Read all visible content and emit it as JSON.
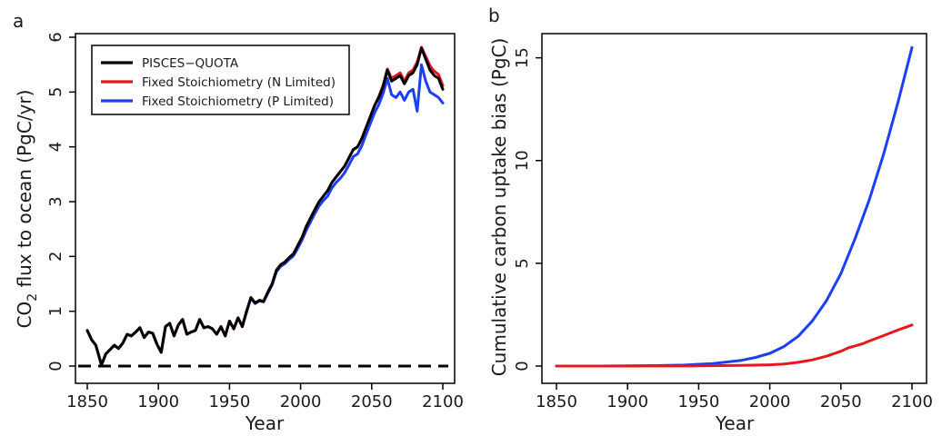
{
  "figure": {
    "panel_a_letter": "a",
    "panel_b_letter": "b"
  },
  "chart_data": [
    {
      "id": "panel-a",
      "type": "line",
      "title": "",
      "xlabel": "Year",
      "ylabel": "CO2 flux to ocean (PgC/yr)",
      "ylabel_parts": {
        "pre": "CO",
        "sub": "2",
        "post": " flux to ocean (PgC/yr)"
      },
      "xlim": [
        1850,
        2100
      ],
      "ylim": [
        0,
        6
      ],
      "xticks": [
        1850,
        1900,
        1950,
        2000,
        2050,
        2100
      ],
      "yticks": [
        0,
        1,
        2,
        3,
        4,
        5,
        6
      ],
      "grid": false,
      "legend_position": "top-left",
      "reference_line": {
        "y": 0,
        "style": "dashed"
      },
      "series": [
        {
          "name": "PISCES−QUOTA",
          "color": "#000000",
          "x": [
            1850,
            1853,
            1856,
            1858,
            1860,
            1863,
            1866,
            1869,
            1872,
            1875,
            1878,
            1881,
            1884,
            1887,
            1890,
            1893,
            1896,
            1899,
            1902,
            1905,
            1908,
            1911,
            1914,
            1917,
            1920,
            1923,
            1926,
            1929,
            1932,
            1935,
            1938,
            1941,
            1944,
            1947,
            1950,
            1953,
            1956,
            1959,
            1962,
            1965,
            1968,
            1971,
            1974,
            1977,
            1980,
            1983,
            1986,
            1989,
            1992,
            1995,
            1998,
            2001,
            2004,
            2007,
            2010,
            2013,
            2016,
            2019,
            2022,
            2025,
            2028,
            2031,
            2034,
            2037,
            2040,
            2043,
            2046,
            2049,
            2052,
            2055,
            2058,
            2061,
            2064,
            2067,
            2070,
            2073,
            2076,
            2079,
            2082,
            2085,
            2088,
            2091,
            2094,
            2097,
            2100
          ],
          "y": [
            0.65,
            0.48,
            0.38,
            0.2,
            0.02,
            0.22,
            0.3,
            0.38,
            0.32,
            0.42,
            0.58,
            0.55,
            0.62,
            0.7,
            0.52,
            0.62,
            0.6,
            0.4,
            0.25,
            0.72,
            0.78,
            0.55,
            0.75,
            0.85,
            0.58,
            0.62,
            0.65,
            0.85,
            0.7,
            0.72,
            0.68,
            0.58,
            0.72,
            0.55,
            0.82,
            0.68,
            0.88,
            0.72,
            1.0,
            1.25,
            1.15,
            1.2,
            1.18,
            1.35,
            1.5,
            1.75,
            1.85,
            1.9,
            1.98,
            2.05,
            2.2,
            2.35,
            2.55,
            2.7,
            2.85,
            3.0,
            3.1,
            3.2,
            3.35,
            3.45,
            3.55,
            3.65,
            3.8,
            3.95,
            4.0,
            4.15,
            4.35,
            4.55,
            4.75,
            4.9,
            5.1,
            5.4,
            5.2,
            5.25,
            5.3,
            5.15,
            5.3,
            5.35,
            5.5,
            5.8,
            5.6,
            5.4,
            5.3,
            5.25,
            5.05
          ]
        },
        {
          "name": "Fixed Stoichiometry (N Limited)",
          "color": "#e8171c",
          "x": [
            1850,
            1853,
            1856,
            1858,
            1860,
            1863,
            1866,
            1869,
            1872,
            1875,
            1878,
            1881,
            1884,
            1887,
            1890,
            1893,
            1896,
            1899,
            1902,
            1905,
            1908,
            1911,
            1914,
            1917,
            1920,
            1923,
            1926,
            1929,
            1932,
            1935,
            1938,
            1941,
            1944,
            1947,
            1950,
            1953,
            1956,
            1959,
            1962,
            1965,
            1968,
            1971,
            1974,
            1977,
            1980,
            1983,
            1986,
            1989,
            1992,
            1995,
            1998,
            2001,
            2004,
            2007,
            2010,
            2013,
            2016,
            2019,
            2022,
            2025,
            2028,
            2031,
            2034,
            2037,
            2040,
            2043,
            2046,
            2049,
            2052,
            2055,
            2058,
            2061,
            2064,
            2067,
            2070,
            2073,
            2076,
            2079,
            2082,
            2085,
            2088,
            2091,
            2094,
            2097,
            2100
          ],
          "y": [
            0.65,
            0.48,
            0.38,
            0.2,
            0.02,
            0.22,
            0.3,
            0.38,
            0.32,
            0.42,
            0.58,
            0.55,
            0.62,
            0.7,
            0.52,
            0.62,
            0.6,
            0.4,
            0.25,
            0.72,
            0.78,
            0.55,
            0.75,
            0.85,
            0.58,
            0.62,
            0.65,
            0.85,
            0.7,
            0.72,
            0.68,
            0.58,
            0.72,
            0.55,
            0.82,
            0.68,
            0.88,
            0.72,
            1.0,
            1.25,
            1.15,
            1.2,
            1.18,
            1.35,
            1.5,
            1.75,
            1.85,
            1.9,
            1.98,
            2.05,
            2.2,
            2.35,
            2.55,
            2.7,
            2.85,
            3.0,
            3.1,
            3.2,
            3.35,
            3.45,
            3.55,
            3.65,
            3.8,
            3.95,
            4.0,
            4.15,
            4.35,
            4.55,
            4.75,
            4.92,
            5.12,
            5.42,
            5.25,
            5.3,
            5.35,
            5.2,
            5.35,
            5.4,
            5.55,
            5.82,
            5.65,
            5.48,
            5.38,
            5.32,
            5.12
          ]
        },
        {
          "name": "Fixed Stoichiometry (P Limited)",
          "color": "#1b3ff5",
          "x": [
            1850,
            1853,
            1856,
            1858,
            1860,
            1863,
            1866,
            1869,
            1872,
            1875,
            1878,
            1881,
            1884,
            1887,
            1890,
            1893,
            1896,
            1899,
            1902,
            1905,
            1908,
            1911,
            1914,
            1917,
            1920,
            1923,
            1926,
            1929,
            1932,
            1935,
            1938,
            1941,
            1944,
            1947,
            1950,
            1953,
            1956,
            1959,
            1962,
            1965,
            1968,
            1971,
            1974,
            1977,
            1980,
            1983,
            1986,
            1989,
            1992,
            1995,
            1998,
            2001,
            2004,
            2007,
            2010,
            2013,
            2016,
            2019,
            2022,
            2025,
            2028,
            2031,
            2034,
            2037,
            2040,
            2043,
            2046,
            2049,
            2052,
            2055,
            2058,
            2061,
            2064,
            2067,
            2070,
            2073,
            2076,
            2079,
            2082,
            2085,
            2088,
            2091,
            2094,
            2097,
            2100
          ],
          "y": [
            0.65,
            0.48,
            0.38,
            0.2,
            0.02,
            0.22,
            0.3,
            0.38,
            0.32,
            0.42,
            0.58,
            0.55,
            0.62,
            0.7,
            0.52,
            0.62,
            0.6,
            0.4,
            0.25,
            0.72,
            0.78,
            0.55,
            0.75,
            0.85,
            0.58,
            0.62,
            0.65,
            0.85,
            0.7,
            0.72,
            0.68,
            0.58,
            0.72,
            0.55,
            0.82,
            0.68,
            0.88,
            0.72,
            0.99,
            1.24,
            1.14,
            1.19,
            1.17,
            1.33,
            1.48,
            1.72,
            1.82,
            1.87,
            1.95,
            2.01,
            2.15,
            2.3,
            2.48,
            2.63,
            2.78,
            2.92,
            3.02,
            3.1,
            3.25,
            3.35,
            3.43,
            3.53,
            3.67,
            3.82,
            3.87,
            4.02,
            4.22,
            4.42,
            4.62,
            4.77,
            4.97,
            5.25,
            4.95,
            4.9,
            5.0,
            4.85,
            5.0,
            5.05,
            4.65,
            5.5,
            5.2,
            5.0,
            4.95,
            4.9,
            4.8
          ]
        }
      ]
    },
    {
      "id": "panel-b",
      "type": "line",
      "title": "",
      "xlabel": "Year",
      "ylabel": "Cumulative carbon uptake bias (PgC)",
      "xlim": [
        1850,
        2100
      ],
      "ylim": [
        0,
        16
      ],
      "xticks": [
        1850,
        1900,
        1950,
        2000,
        2050,
        2100
      ],
      "yticks": [
        0,
        5,
        10,
        15
      ],
      "grid": false,
      "series": [
        {
          "color": "#1b3ff5",
          "x": [
            1850,
            1880,
            1920,
            1940,
            1960,
            1980,
            1990,
            2000,
            2010,
            2020,
            2030,
            2040,
            2050,
            2060,
            2070,
            2080,
            2090,
            2100
          ],
          "y": [
            0,
            0,
            0.02,
            0.05,
            0.12,
            0.28,
            0.42,
            0.62,
            0.95,
            1.45,
            2.2,
            3.2,
            4.5,
            6.2,
            8.1,
            10.3,
            12.8,
            15.5
          ]
        },
        {
          "color": "#e8171c",
          "x": [
            1850,
            1900,
            1950,
            1980,
            2000,
            2010,
            2020,
            2030,
            2040,
            2050,
            2055,
            2060,
            2065,
            2070,
            2080,
            2090,
            2100
          ],
          "y": [
            0,
            0,
            0.01,
            0.03,
            0.06,
            0.1,
            0.18,
            0.3,
            0.48,
            0.72,
            0.88,
            0.98,
            1.08,
            1.22,
            1.48,
            1.75,
            2.0
          ]
        }
      ]
    }
  ]
}
